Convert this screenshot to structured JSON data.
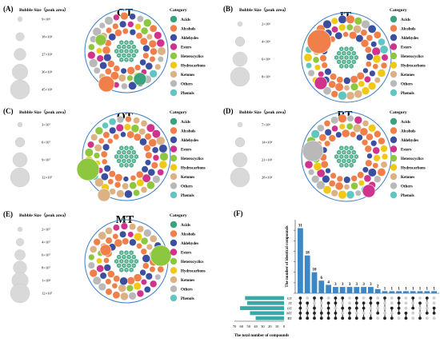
{
  "colors": {
    "Acids": "#3aa37e",
    "Alcohols": "#f07f4a",
    "Aldehydes": "#3a4fa0",
    "Esters": "#d0338c",
    "Heterocyclics": "#8dc63f",
    "Hydrocarbons": "#f2c817",
    "Ketones": "#dcb183",
    "Others": "#b9b9b9",
    "Phenols": "#61c6c2",
    "ring": "#3d7fc7",
    "upset": "#3d87c5",
    "setbar": "#3aa9a6"
  },
  "category_label": "Category",
  "bubble_size_label": "Bubble Size（peak area）",
  "categories": [
    "Acids",
    "Alcohols",
    "Aldehydes",
    "Esters",
    "Heterocyclics",
    "Hydrocarbons",
    "Ketones",
    "Others",
    "Phenols"
  ],
  "panels": [
    {
      "letter": "(A)",
      "group": "GT",
      "sizes": [
        "9×10⁶",
        "18×10⁶",
        "27×10⁶",
        "36×10⁶",
        "45×10⁶"
      ]
    },
    {
      "letter": "(B)",
      "group": "JT",
      "sizes": [
        "2×10⁶",
        "4×10⁶",
        "6×10⁶",
        "8×10⁶"
      ]
    },
    {
      "letter": "(C)",
      "group": "OT",
      "sizes": [
        "3×10⁷",
        "6×10⁷",
        "9×10⁷",
        "12×10⁷"
      ]
    },
    {
      "letter": "(D)",
      "group": "RT",
      "sizes": [
        "7×10⁶",
        "14×10⁶",
        "21×10⁶",
        "28×10⁶"
      ]
    },
    {
      "letter": "(E)",
      "group": "MT",
      "sizes": [
        "2×10⁷",
        "4×10⁷",
        "6×10⁷",
        "8×10⁷",
        "1×10⁸",
        "12×10⁷"
      ]
    }
  ],
  "chart_data": {
    "type": "bar",
    "panel": "(F)",
    "ylabel": "The number of identical compounds",
    "xlabel": "The total number of compounds",
    "intersection_values": [
      31,
      18,
      10,
      6,
      4,
      3,
      3,
      3,
      3,
      3,
      3,
      2,
      1,
      1,
      1,
      1,
      1,
      1,
      1,
      1
    ],
    "ylim": [
      0,
      35
    ],
    "sets": [
      "GT",
      "JT",
      "OT",
      "MT",
      "RT"
    ],
    "set_axis_ticks": [
      "70",
      "60",
      "50",
      "40",
      "30",
      "20",
      "10",
      "0"
    ],
    "set_axis_range": [
      0,
      70
    ]
  }
}
